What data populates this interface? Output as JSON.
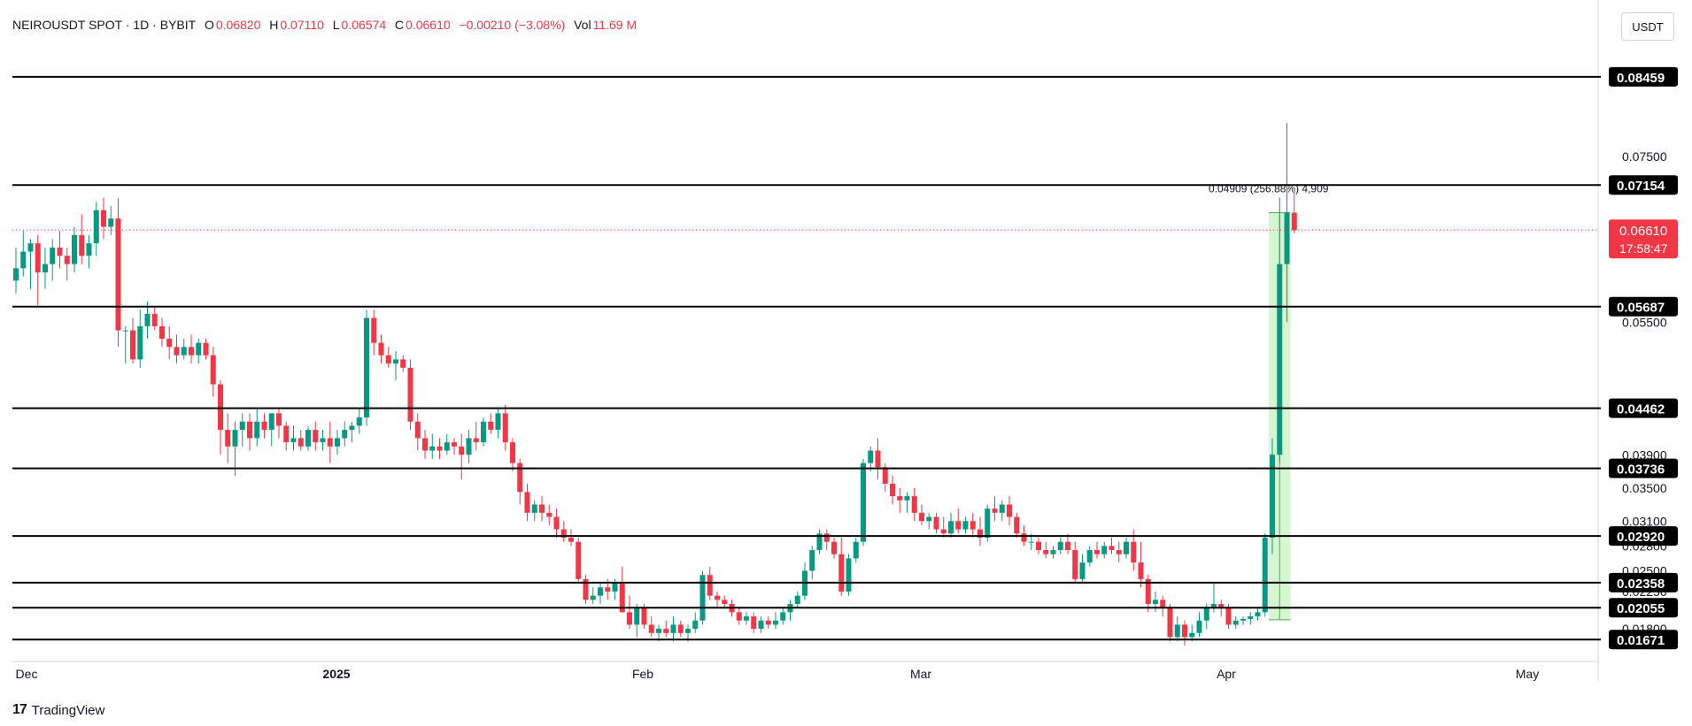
{
  "header": {
    "symbol": "NEIROUSDT SPOT · 1D · BYBIT",
    "o_label": "O",
    "o_value": "0.06820",
    "h_label": "H",
    "h_value": "0.07110",
    "l_label": "L",
    "l_value": "0.06574",
    "c_label": "C",
    "c_value": "0.06610",
    "change": "−0.00210 (−3.08%)",
    "vol_label": "Vol",
    "vol_value": "11.69 M"
  },
  "currency_button": "USDT",
  "branding": "TradingView",
  "colors": {
    "up": "#089981",
    "down": "#f23645",
    "level": "#000000",
    "measure_fill": "#c8f2c2",
    "measure_line": "#4caf50"
  },
  "chart_data": {
    "type": "candlestick",
    "x_tick_labels": [
      "Dec",
      "2025",
      "Feb",
      "Mar",
      "Apr",
      "May"
    ],
    "y_axis_labels": [
      "0.07500",
      "0.05500",
      "0.03900",
      "0.03500",
      "0.03100",
      "0.02800",
      "0.02500",
      "0.02250",
      "0.02000",
      "0.01800"
    ],
    "ylim": [
      0.0162,
      0.093
    ],
    "levels": [
      "0.08459",
      "0.07154",
      "0.05687",
      "0.04462",
      "0.03736",
      "0.02920",
      "0.02358",
      "0.02055",
      "0.01671"
    ],
    "last_price": {
      "value": "0.06610",
      "countdown": "17:58:47"
    },
    "measure": {
      "label": "0.04909 (256.88%) 4,909",
      "from": 0.0191,
      "to": 0.0682
    },
    "candles": [
      {
        "o": 0.06,
        "h": 0.064,
        "l": 0.0585,
        "c": 0.0615
      },
      {
        "o": 0.0615,
        "h": 0.066,
        "l": 0.0605,
        "c": 0.0635
      },
      {
        "o": 0.0635,
        "h": 0.065,
        "l": 0.059,
        "c": 0.0645
      },
      {
        "o": 0.0645,
        "h": 0.0655,
        "l": 0.057,
        "c": 0.061
      },
      {
        "o": 0.061,
        "h": 0.064,
        "l": 0.059,
        "c": 0.062
      },
      {
        "o": 0.062,
        "h": 0.065,
        "l": 0.06,
        "c": 0.064
      },
      {
        "o": 0.064,
        "h": 0.066,
        "l": 0.0615,
        "c": 0.063
      },
      {
        "o": 0.063,
        "h": 0.064,
        "l": 0.06,
        "c": 0.062
      },
      {
        "o": 0.062,
        "h": 0.0665,
        "l": 0.061,
        "c": 0.0655
      },
      {
        "o": 0.0655,
        "h": 0.068,
        "l": 0.062,
        "c": 0.063
      },
      {
        "o": 0.063,
        "h": 0.0655,
        "l": 0.0615,
        "c": 0.0645
      },
      {
        "o": 0.0645,
        "h": 0.0695,
        "l": 0.063,
        "c": 0.0685
      },
      {
        "o": 0.0685,
        "h": 0.07,
        "l": 0.065,
        "c": 0.0665
      },
      {
        "o": 0.0665,
        "h": 0.069,
        "l": 0.0655,
        "c": 0.0675
      },
      {
        "o": 0.0675,
        "h": 0.07,
        "l": 0.052,
        "c": 0.054
      },
      {
        "o": 0.054,
        "h": 0.0545,
        "l": 0.05,
        "c": 0.054
      },
      {
        "o": 0.054,
        "h": 0.0555,
        "l": 0.05,
        "c": 0.0505
      },
      {
        "o": 0.0505,
        "h": 0.0565,
        "l": 0.0495,
        "c": 0.0545
      },
      {
        "o": 0.0545,
        "h": 0.0575,
        "l": 0.053,
        "c": 0.056
      },
      {
        "o": 0.056,
        "h": 0.057,
        "l": 0.054,
        "c": 0.0545
      },
      {
        "o": 0.0545,
        "h": 0.0555,
        "l": 0.052,
        "c": 0.053
      },
      {
        "o": 0.053,
        "h": 0.0545,
        "l": 0.0505,
        "c": 0.052
      },
      {
        "o": 0.052,
        "h": 0.0535,
        "l": 0.05,
        "c": 0.051
      },
      {
        "o": 0.051,
        "h": 0.053,
        "l": 0.0505,
        "c": 0.052
      },
      {
        "o": 0.052,
        "h": 0.0535,
        "l": 0.05,
        "c": 0.051
      },
      {
        "o": 0.051,
        "h": 0.053,
        "l": 0.05,
        "c": 0.0525
      },
      {
        "o": 0.0525,
        "h": 0.053,
        "l": 0.0505,
        "c": 0.051
      },
      {
        "o": 0.051,
        "h": 0.052,
        "l": 0.046,
        "c": 0.0475
      },
      {
        "o": 0.0475,
        "h": 0.048,
        "l": 0.039,
        "c": 0.042
      },
      {
        "o": 0.042,
        "h": 0.044,
        "l": 0.038,
        "c": 0.04
      },
      {
        "o": 0.04,
        "h": 0.043,
        "l": 0.0365,
        "c": 0.042
      },
      {
        "o": 0.042,
        "h": 0.044,
        "l": 0.04,
        "c": 0.043
      },
      {
        "o": 0.043,
        "h": 0.044,
        "l": 0.0395,
        "c": 0.041
      },
      {
        "o": 0.041,
        "h": 0.0445,
        "l": 0.04,
        "c": 0.043
      },
      {
        "o": 0.043,
        "h": 0.044,
        "l": 0.041,
        "c": 0.042
      },
      {
        "o": 0.042,
        "h": 0.044,
        "l": 0.04,
        "c": 0.044
      },
      {
        "o": 0.044,
        "h": 0.0445,
        "l": 0.041,
        "c": 0.0425
      },
      {
        "o": 0.0425,
        "h": 0.043,
        "l": 0.0395,
        "c": 0.0405
      },
      {
        "o": 0.0405,
        "h": 0.0425,
        "l": 0.0395,
        "c": 0.041
      },
      {
        "o": 0.041,
        "h": 0.042,
        "l": 0.0395,
        "c": 0.04
      },
      {
        "o": 0.04,
        "h": 0.0425,
        "l": 0.0395,
        "c": 0.042
      },
      {
        "o": 0.042,
        "h": 0.043,
        "l": 0.0395,
        "c": 0.0405
      },
      {
        "o": 0.0405,
        "h": 0.042,
        "l": 0.0395,
        "c": 0.041
      },
      {
        "o": 0.041,
        "h": 0.043,
        "l": 0.038,
        "c": 0.04
      },
      {
        "o": 0.04,
        "h": 0.042,
        "l": 0.039,
        "c": 0.041
      },
      {
        "o": 0.041,
        "h": 0.043,
        "l": 0.04,
        "c": 0.042
      },
      {
        "o": 0.042,
        "h": 0.043,
        "l": 0.0405,
        "c": 0.0425
      },
      {
        "o": 0.0425,
        "h": 0.0445,
        "l": 0.0415,
        "c": 0.0435
      },
      {
        "o": 0.0435,
        "h": 0.0565,
        "l": 0.0425,
        "c": 0.0555
      },
      {
        "o": 0.0555,
        "h": 0.0565,
        "l": 0.051,
        "c": 0.0525
      },
      {
        "o": 0.0525,
        "h": 0.0535,
        "l": 0.05,
        "c": 0.051
      },
      {
        "o": 0.051,
        "h": 0.052,
        "l": 0.0495,
        "c": 0.05
      },
      {
        "o": 0.05,
        "h": 0.0515,
        "l": 0.048,
        "c": 0.0505
      },
      {
        "o": 0.0505,
        "h": 0.051,
        "l": 0.049,
        "c": 0.0495
      },
      {
        "o": 0.0495,
        "h": 0.0505,
        "l": 0.042,
        "c": 0.043
      },
      {
        "o": 0.043,
        "h": 0.044,
        "l": 0.0395,
        "c": 0.041
      },
      {
        "o": 0.041,
        "h": 0.042,
        "l": 0.0385,
        "c": 0.0395
      },
      {
        "o": 0.0395,
        "h": 0.0415,
        "l": 0.0385,
        "c": 0.04
      },
      {
        "o": 0.04,
        "h": 0.041,
        "l": 0.0385,
        "c": 0.0395
      },
      {
        "o": 0.0395,
        "h": 0.0415,
        "l": 0.039,
        "c": 0.0405
      },
      {
        "o": 0.0405,
        "h": 0.041,
        "l": 0.039,
        "c": 0.04
      },
      {
        "o": 0.04,
        "h": 0.0415,
        "l": 0.036,
        "c": 0.039
      },
      {
        "o": 0.039,
        "h": 0.042,
        "l": 0.038,
        "c": 0.041
      },
      {
        "o": 0.041,
        "h": 0.043,
        "l": 0.0395,
        "c": 0.0405
      },
      {
        "o": 0.0405,
        "h": 0.0435,
        "l": 0.04,
        "c": 0.043
      },
      {
        "o": 0.043,
        "h": 0.044,
        "l": 0.0415,
        "c": 0.042
      },
      {
        "o": 0.042,
        "h": 0.0445,
        "l": 0.041,
        "c": 0.044
      },
      {
        "o": 0.044,
        "h": 0.045,
        "l": 0.0395,
        "c": 0.0405
      },
      {
        "o": 0.0405,
        "h": 0.041,
        "l": 0.037,
        "c": 0.038
      },
      {
        "o": 0.038,
        "h": 0.0385,
        "l": 0.033,
        "c": 0.0345
      },
      {
        "o": 0.0345,
        "h": 0.0355,
        "l": 0.031,
        "c": 0.032
      },
      {
        "o": 0.032,
        "h": 0.0335,
        "l": 0.031,
        "c": 0.033
      },
      {
        "o": 0.033,
        "h": 0.034,
        "l": 0.031,
        "c": 0.032
      },
      {
        "o": 0.032,
        "h": 0.033,
        "l": 0.0305,
        "c": 0.0315
      },
      {
        "o": 0.0315,
        "h": 0.0325,
        "l": 0.029,
        "c": 0.03
      },
      {
        "o": 0.03,
        "h": 0.031,
        "l": 0.0285,
        "c": 0.029
      },
      {
        "o": 0.029,
        "h": 0.03,
        "l": 0.028,
        "c": 0.0285
      },
      {
        "o": 0.0285,
        "h": 0.029,
        "l": 0.0235,
        "c": 0.024
      },
      {
        "o": 0.024,
        "h": 0.0245,
        "l": 0.021,
        "c": 0.0215
      },
      {
        "o": 0.0215,
        "h": 0.023,
        "l": 0.021,
        "c": 0.022
      },
      {
        "o": 0.022,
        "h": 0.0235,
        "l": 0.021,
        "c": 0.023
      },
      {
        "o": 0.023,
        "h": 0.024,
        "l": 0.0215,
        "c": 0.0225
      },
      {
        "o": 0.0225,
        "h": 0.024,
        "l": 0.0215,
        "c": 0.0235
      },
      {
        "o": 0.0235,
        "h": 0.0255,
        "l": 0.02,
        "c": 0.02
      },
      {
        "o": 0.02,
        "h": 0.022,
        "l": 0.018,
        "c": 0.0185
      },
      {
        "o": 0.0185,
        "h": 0.021,
        "l": 0.017,
        "c": 0.0205
      },
      {
        "o": 0.0205,
        "h": 0.021,
        "l": 0.018,
        "c": 0.0185
      },
      {
        "o": 0.0185,
        "h": 0.0195,
        "l": 0.017,
        "c": 0.0175
      },
      {
        "o": 0.0175,
        "h": 0.0185,
        "l": 0.0165,
        "c": 0.018
      },
      {
        "o": 0.018,
        "h": 0.019,
        "l": 0.017,
        "c": 0.0175
      },
      {
        "o": 0.0175,
        "h": 0.0195,
        "l": 0.0165,
        "c": 0.0185
      },
      {
        "o": 0.0185,
        "h": 0.019,
        "l": 0.017,
        "c": 0.0175
      },
      {
        "o": 0.0175,
        "h": 0.0185,
        "l": 0.0165,
        "c": 0.018
      },
      {
        "o": 0.018,
        "h": 0.02,
        "l": 0.0175,
        "c": 0.019
      },
      {
        "o": 0.019,
        "h": 0.025,
        "l": 0.0185,
        "c": 0.0245
      },
      {
        "o": 0.0245,
        "h": 0.0255,
        "l": 0.0215,
        "c": 0.022
      },
      {
        "o": 0.022,
        "h": 0.0225,
        "l": 0.0205,
        "c": 0.0215
      },
      {
        "o": 0.0215,
        "h": 0.022,
        "l": 0.0205,
        "c": 0.021
      },
      {
        "o": 0.021,
        "h": 0.0215,
        "l": 0.0195,
        "c": 0.02
      },
      {
        "o": 0.02,
        "h": 0.0205,
        "l": 0.0185,
        "c": 0.019
      },
      {
        "o": 0.019,
        "h": 0.02,
        "l": 0.0185,
        "c": 0.0195
      },
      {
        "o": 0.0195,
        "h": 0.02,
        "l": 0.0175,
        "c": 0.018
      },
      {
        "o": 0.018,
        "h": 0.0195,
        "l": 0.0175,
        "c": 0.019
      },
      {
        "o": 0.019,
        "h": 0.0195,
        "l": 0.018,
        "c": 0.0185
      },
      {
        "o": 0.0185,
        "h": 0.02,
        "l": 0.018,
        "c": 0.019
      },
      {
        "o": 0.019,
        "h": 0.0205,
        "l": 0.0185,
        "c": 0.02
      },
      {
        "o": 0.02,
        "h": 0.0215,
        "l": 0.019,
        "c": 0.021
      },
      {
        "o": 0.021,
        "h": 0.0225,
        "l": 0.0205,
        "c": 0.022
      },
      {
        "o": 0.022,
        "h": 0.026,
        "l": 0.0215,
        "c": 0.025
      },
      {
        "o": 0.025,
        "h": 0.028,
        "l": 0.024,
        "c": 0.0275
      },
      {
        "o": 0.0275,
        "h": 0.03,
        "l": 0.027,
        "c": 0.0295
      },
      {
        "o": 0.0295,
        "h": 0.03,
        "l": 0.0275,
        "c": 0.0285
      },
      {
        "o": 0.0285,
        "h": 0.029,
        "l": 0.0265,
        "c": 0.027
      },
      {
        "o": 0.027,
        "h": 0.029,
        "l": 0.022,
        "c": 0.0225
      },
      {
        "o": 0.0225,
        "h": 0.027,
        "l": 0.022,
        "c": 0.0265
      },
      {
        "o": 0.0265,
        "h": 0.029,
        "l": 0.026,
        "c": 0.0285
      },
      {
        "o": 0.0285,
        "h": 0.0385,
        "l": 0.028,
        "c": 0.038
      },
      {
        "o": 0.038,
        "h": 0.04,
        "l": 0.037,
        "c": 0.0395
      },
      {
        "o": 0.0395,
        "h": 0.041,
        "l": 0.036,
        "c": 0.0375
      },
      {
        "o": 0.0375,
        "h": 0.038,
        "l": 0.0345,
        "c": 0.0355
      },
      {
        "o": 0.0355,
        "h": 0.0365,
        "l": 0.033,
        "c": 0.034
      },
      {
        "o": 0.034,
        "h": 0.035,
        "l": 0.032,
        "c": 0.0335
      },
      {
        "o": 0.0335,
        "h": 0.0345,
        "l": 0.032,
        "c": 0.034
      },
      {
        "o": 0.034,
        "h": 0.035,
        "l": 0.031,
        "c": 0.032
      },
      {
        "o": 0.032,
        "h": 0.033,
        "l": 0.0305,
        "c": 0.031
      },
      {
        "o": 0.031,
        "h": 0.032,
        "l": 0.03,
        "c": 0.0315
      },
      {
        "o": 0.0315,
        "h": 0.032,
        "l": 0.0295,
        "c": 0.03
      },
      {
        "o": 0.03,
        "h": 0.0315,
        "l": 0.029,
        "c": 0.0295
      },
      {
        "o": 0.0295,
        "h": 0.032,
        "l": 0.029,
        "c": 0.031
      },
      {
        "o": 0.031,
        "h": 0.0325,
        "l": 0.0295,
        "c": 0.03
      },
      {
        "o": 0.03,
        "h": 0.0315,
        "l": 0.0295,
        "c": 0.031
      },
      {
        "o": 0.031,
        "h": 0.032,
        "l": 0.029,
        "c": 0.03
      },
      {
        "o": 0.03,
        "h": 0.0315,
        "l": 0.028,
        "c": 0.029
      },
      {
        "o": 0.029,
        "h": 0.033,
        "l": 0.0285,
        "c": 0.0325
      },
      {
        "o": 0.0325,
        "h": 0.034,
        "l": 0.031,
        "c": 0.032
      },
      {
        "o": 0.032,
        "h": 0.0335,
        "l": 0.031,
        "c": 0.033
      },
      {
        "o": 0.033,
        "h": 0.034,
        "l": 0.0305,
        "c": 0.0315
      },
      {
        "o": 0.0315,
        "h": 0.032,
        "l": 0.029,
        "c": 0.0295
      },
      {
        "o": 0.0295,
        "h": 0.0305,
        "l": 0.028,
        "c": 0.0285
      },
      {
        "o": 0.0285,
        "h": 0.0295,
        "l": 0.0275,
        "c": 0.0285
      },
      {
        "o": 0.0285,
        "h": 0.029,
        "l": 0.027,
        "c": 0.0275
      },
      {
        "o": 0.0275,
        "h": 0.0285,
        "l": 0.0265,
        "c": 0.027
      },
      {
        "o": 0.027,
        "h": 0.028,
        "l": 0.0265,
        "c": 0.0275
      },
      {
        "o": 0.0275,
        "h": 0.029,
        "l": 0.027,
        "c": 0.0285
      },
      {
        "o": 0.0285,
        "h": 0.0295,
        "l": 0.027,
        "c": 0.0275
      },
      {
        "o": 0.0275,
        "h": 0.0285,
        "l": 0.0235,
        "c": 0.024
      },
      {
        "o": 0.024,
        "h": 0.027,
        "l": 0.0235,
        "c": 0.026
      },
      {
        "o": 0.026,
        "h": 0.028,
        "l": 0.0255,
        "c": 0.0275
      },
      {
        "o": 0.0275,
        "h": 0.0285,
        "l": 0.0265,
        "c": 0.027
      },
      {
        "o": 0.027,
        "h": 0.0285,
        "l": 0.0265,
        "c": 0.028
      },
      {
        "o": 0.028,
        "h": 0.029,
        "l": 0.027,
        "c": 0.0275
      },
      {
        "o": 0.0275,
        "h": 0.0285,
        "l": 0.026,
        "c": 0.027
      },
      {
        "o": 0.027,
        "h": 0.029,
        "l": 0.0265,
        "c": 0.0285
      },
      {
        "o": 0.0285,
        "h": 0.03,
        "l": 0.025,
        "c": 0.026
      },
      {
        "o": 0.026,
        "h": 0.0285,
        "l": 0.023,
        "c": 0.024
      },
      {
        "o": 0.024,
        "h": 0.0245,
        "l": 0.02,
        "c": 0.021
      },
      {
        "o": 0.021,
        "h": 0.0225,
        "l": 0.02,
        "c": 0.0215
      },
      {
        "o": 0.0215,
        "h": 0.022,
        "l": 0.0195,
        "c": 0.0205
      },
      {
        "o": 0.0205,
        "h": 0.021,
        "l": 0.0165,
        "c": 0.017
      },
      {
        "o": 0.017,
        "h": 0.0195,
        "l": 0.0165,
        "c": 0.0185
      },
      {
        "o": 0.0185,
        "h": 0.019,
        "l": 0.016,
        "c": 0.017
      },
      {
        "o": 0.017,
        "h": 0.0185,
        "l": 0.0165,
        "c": 0.0175
      },
      {
        "o": 0.0175,
        "h": 0.02,
        "l": 0.017,
        "c": 0.019
      },
      {
        "o": 0.019,
        "h": 0.021,
        "l": 0.018,
        "c": 0.0205
      },
      {
        "o": 0.0205,
        "h": 0.0235,
        "l": 0.02,
        "c": 0.021
      },
      {
        "o": 0.021,
        "h": 0.0215,
        "l": 0.0195,
        "c": 0.0205
      },
      {
        "o": 0.0205,
        "h": 0.021,
        "l": 0.018,
        "c": 0.0185
      },
      {
        "o": 0.0185,
        "h": 0.0195,
        "l": 0.018,
        "c": 0.019
      },
      {
        "o": 0.019,
        "h": 0.0195,
        "l": 0.0185,
        "c": 0.0192
      },
      {
        "o": 0.0192,
        "h": 0.02,
        "l": 0.0185,
        "c": 0.0195
      },
      {
        "o": 0.0195,
        "h": 0.0205,
        "l": 0.019,
        "c": 0.02
      },
      {
        "o": 0.02,
        "h": 0.0295,
        "l": 0.0195,
        "c": 0.029
      },
      {
        "o": 0.029,
        "h": 0.041,
        "l": 0.027,
        "c": 0.039
      },
      {
        "o": 0.039,
        "h": 0.07,
        "l": 0.038,
        "c": 0.062
      },
      {
        "o": 0.062,
        "h": 0.079,
        "l": 0.055,
        "c": 0.0682
      },
      {
        "o": 0.0682,
        "h": 0.0711,
        "l": 0.0657,
        "c": 0.0661
      }
    ]
  }
}
